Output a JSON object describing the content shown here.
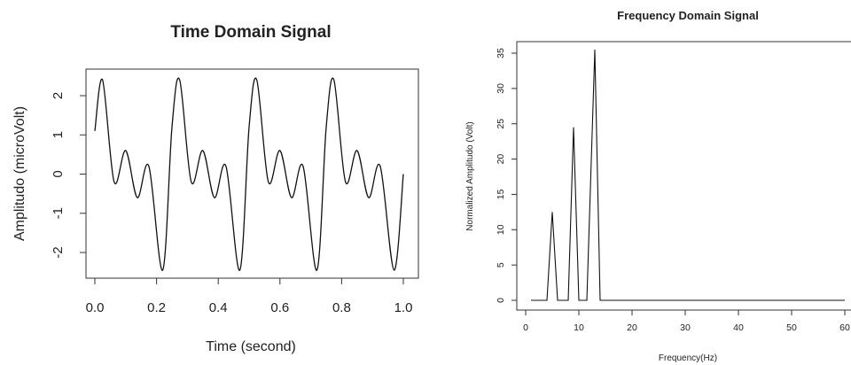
{
  "chart_data": [
    {
      "type": "line",
      "title": "Time Domain Signal",
      "xlabel": "Time (second)",
      "ylabel": "Amplitudo (microVolt)",
      "xlim": [
        0,
        1
      ],
      "ylim": [
        -2.5,
        2.5
      ],
      "xticks": [
        "0.0",
        "0.2",
        "0.4",
        "0.6",
        "0.8",
        "1.0"
      ],
      "yticks": [
        "-2",
        "-1",
        "0",
        "1",
        "2"
      ],
      "grid": false,
      "series": [
        {
          "x": [
            0,
            0.025,
            0.0625,
            0.1,
            0.1375,
            0.175,
            0.22,
            0.25,
            0.275,
            0.3125,
            0.35,
            0.3875,
            0.425,
            0.47,
            0.5,
            0.525,
            0.5625,
            0.6,
            0.6375,
            0.675,
            0.72,
            0.75,
            0.775,
            0.8125,
            0.85,
            0.8875,
            0.925,
            0.97,
            1.0
          ],
          "y": [
            1.1,
            2.4,
            -0.2,
            0.6,
            -0.6,
            0.2,
            -2.45,
            1.2,
            2.4,
            -0.2,
            0.6,
            -0.6,
            0.2,
            -2.45,
            1.2,
            2.4,
            -0.2,
            0.6,
            -0.6,
            0.2,
            -2.45,
            1.2,
            2.4,
            -0.2,
            0.6,
            -0.6,
            0.2,
            -2.45,
            0.0
          ]
        }
      ]
    },
    {
      "type": "line",
      "title": "Frequency Domain Signal",
      "xlabel": "Frequency(Hz)",
      "ylabel": "Normalized Amplitudo (Volt)",
      "xlim": [
        0,
        60
      ],
      "ylim": [
        0,
        35
      ],
      "xticks": [
        "0",
        "10",
        "20",
        "30",
        "40",
        "50",
        "60"
      ],
      "yticks": [
        "0",
        "5",
        "10",
        "15",
        "20",
        "25",
        "30",
        "35"
      ],
      "grid": false,
      "series": [
        {
          "x": [
            1,
            4,
            5,
            6,
            8,
            9,
            10,
            11.5,
            13,
            14,
            15,
            60
          ],
          "y": [
            0,
            0,
            12.5,
            0,
            0,
            24.5,
            0,
            0,
            35.5,
            0,
            0,
            0
          ]
        }
      ]
    }
  ]
}
